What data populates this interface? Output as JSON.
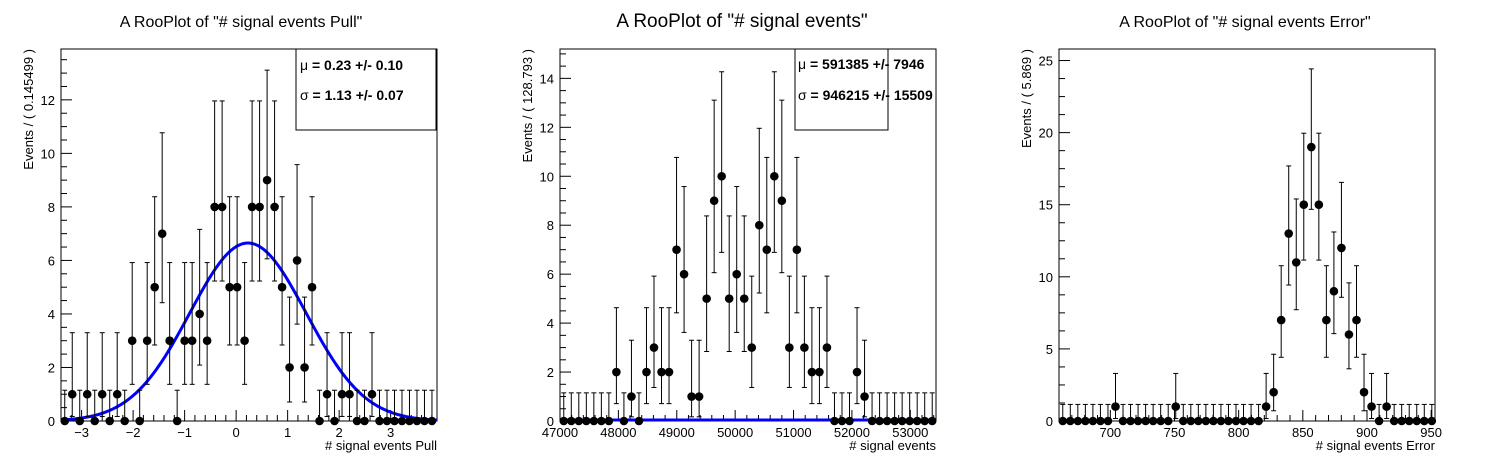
{
  "chart_data": [
    {
      "type": "scatter",
      "title": "A RooPlot of \"# signal events Pull\"",
      "xlabel": "# signal events Pull",
      "ylabel": "Events / ( 0.145499 )",
      "xlim": [
        -3.4,
        3.9
      ],
      "ylim": [
        0,
        13.9
      ],
      "xticks": [
        -3,
        -2,
        -1,
        0,
        1,
        2,
        3
      ],
      "xtick_labels": [
        "−3",
        "−2",
        "−1",
        "0",
        "1",
        "2",
        "3"
      ],
      "yticks": [
        0,
        2,
        4,
        6,
        8,
        10,
        12
      ],
      "bin_width": 0.145499,
      "counts": [
        0,
        1,
        0,
        1,
        0,
        1,
        0,
        1,
        0,
        3,
        0,
        3,
        5,
        7,
        3,
        0,
        3,
        3,
        4,
        3,
        8,
        8,
        5,
        5,
        3,
        8,
        8,
        9,
        8,
        5,
        2,
        6,
        2,
        5,
        0,
        1,
        0,
        1,
        1,
        0,
        0,
        1,
        0,
        0,
        0,
        0,
        0,
        0,
        0,
        0
      ],
      "errors_up": [
        1.15,
        2.3,
        1.15,
        2.3,
        1.15,
        2.3,
        1.15,
        2.3,
        1.15,
        2.92,
        1.15,
        2.92,
        3.38,
        3.77,
        2.92,
        1.15,
        2.92,
        2.92,
        3.16,
        2.92,
        3.96,
        3.96,
        3.38,
        3.38,
        2.92,
        3.96,
        3.96,
        4.11,
        3.96,
        3.38,
        2.63,
        3.58,
        2.63,
        3.38,
        1.15,
        2.3,
        1.15,
        2.3,
        2.3,
        1.15,
        1.15,
        2.3,
        1.15,
        1.15,
        1.15,
        1.15,
        1.15,
        1.15,
        1.15,
        1.15
      ],
      "errors_down": [
        0,
        0.83,
        0,
        0.83,
        0,
        0.83,
        0,
        0.83,
        0,
        1.63,
        0,
        1.63,
        2.16,
        2.58,
        1.63,
        0,
        1.63,
        1.63,
        1.91,
        1.63,
        2.77,
        2.77,
        2.16,
        2.16,
        1.63,
        2.77,
        2.77,
        2.94,
        2.77,
        2.16,
        1.29,
        2.38,
        1.29,
        2.16,
        0,
        0.83,
        0,
        0.83,
        0.83,
        0,
        0,
        0.83,
        0,
        0,
        0,
        0,
        0,
        0,
        0,
        0
      ],
      "fit_curve": {
        "type": "gaussian",
        "mean": 0.23,
        "sigma": 1.13,
        "peak": 6.65,
        "color": "#0000ff"
      },
      "stats": [
        {
          "symbol": "μ",
          "text": " =  0.23 +/- 0.10"
        },
        {
          "symbol": "σ",
          "text": " =  1.13 +/- 0.07"
        }
      ],
      "stats_box": {
        "bold": true
      }
    },
    {
      "type": "scatter",
      "title": "A RooPlot of \"# signal events\"",
      "xlabel": "# signal events",
      "ylabel": "Events / ( 128.793 )",
      "xlim": [
        47000,
        53440
      ],
      "ylim": [
        0,
        15.2
      ],
      "xticks": [
        47000,
        48000,
        49000,
        50000,
        51000,
        52000,
        53000
      ],
      "xtick_labels": [
        "47000",
        "48000",
        "49000",
        "50000",
        "51000",
        "52000",
        "53000"
      ],
      "yticks": [
        0,
        2,
        4,
        6,
        8,
        10,
        12,
        14
      ],
      "bin_width": 128.793,
      "counts": [
        0,
        0,
        0,
        0,
        0,
        0,
        0,
        2,
        0,
        1,
        0,
        2,
        3,
        2,
        2,
        7,
        6,
        1,
        1,
        5,
        9,
        10,
        5,
        6,
        5,
        3,
        8,
        7,
        10,
        9,
        3,
        7,
        3,
        2,
        2,
        3,
        0,
        0,
        0,
        2,
        1,
        0,
        0,
        0,
        0,
        0,
        0,
        0,
        0,
        0
      ],
      "errors_up": [
        1.15,
        1.15,
        1.15,
        1.15,
        1.15,
        1.15,
        1.15,
        2.63,
        1.15,
        2.3,
        1.15,
        2.63,
        2.92,
        2.63,
        2.63,
        3.77,
        3.58,
        2.3,
        2.3,
        3.38,
        4.11,
        4.27,
        3.38,
        3.58,
        3.38,
        2.92,
        3.96,
        3.77,
        4.27,
        4.11,
        2.92,
        3.77,
        2.92,
        2.63,
        2.63,
        2.92,
        1.15,
        1.15,
        1.15,
        2.63,
        2.3,
        1.15,
        1.15,
        1.15,
        1.15,
        1.15,
        1.15,
        1.15,
        1.15,
        1.15
      ],
      "errors_down": [
        0,
        0,
        0,
        0,
        0,
        0,
        0,
        1.29,
        0,
        0.83,
        0,
        1.29,
        1.63,
        1.29,
        1.29,
        2.58,
        2.38,
        0.83,
        0.83,
        2.16,
        2.94,
        3.11,
        2.16,
        2.38,
        2.16,
        1.63,
        2.77,
        2.58,
        3.11,
        2.94,
        1.63,
        2.58,
        1.63,
        1.29,
        1.29,
        1.63,
        0,
        0,
        0,
        1.29,
        0.83,
        0,
        0,
        0,
        0,
        0,
        0,
        0,
        0,
        0
      ],
      "fit_curve": {
        "type": "flat",
        "value": 0,
        "color": "#0000ff"
      },
      "stats": [
        {
          "symbol": "μ",
          "text": " =  591385 +/- 7946"
        },
        {
          "symbol": "σ",
          "text": " =  946215 +/- 15509"
        }
      ],
      "stats_box": {
        "bold": true
      }
    },
    {
      "type": "scatter",
      "title": "A RooPlot of \"# signal events Error\"",
      "xlabel": "# signal events Error",
      "ylabel": "Events / ( 5.869 )",
      "xlim": [
        660,
        953
      ],
      "ylim": [
        0,
        25.8
      ],
      "xticks": [
        700,
        750,
        800,
        850,
        900,
        950
      ],
      "xtick_labels": [
        "700",
        "750",
        "800",
        "850",
        "900",
        "950"
      ],
      "yticks": [
        0,
        5,
        10,
        15,
        20,
        25
      ],
      "bin_width": 5.869,
      "counts": [
        0,
        0,
        0,
        0,
        0,
        0,
        0,
        1,
        0,
        0,
        0,
        0,
        0,
        0,
        0,
        1,
        0,
        0,
        0,
        0,
        0,
        0,
        0,
        0,
        0,
        0,
        0,
        1,
        2,
        7,
        13,
        11,
        15,
        19,
        15,
        7,
        9,
        12,
        6,
        7,
        2,
        1,
        0,
        1,
        0,
        0,
        0,
        0,
        0,
        0
      ],
      "errors_up": [
        1.15,
        1.15,
        1.15,
        1.15,
        1.15,
        1.15,
        1.15,
        2.3,
        1.15,
        1.15,
        1.15,
        1.15,
        1.15,
        1.15,
        1.15,
        2.3,
        1.15,
        1.15,
        1.15,
        1.15,
        1.15,
        1.15,
        1.15,
        1.15,
        1.15,
        1.15,
        1.15,
        2.3,
        2.63,
        3.77,
        4.69,
        4.4,
        4.96,
        5.42,
        4.96,
        3.77,
        4.11,
        4.55,
        3.58,
        3.77,
        2.63,
        2.3,
        1.15,
        2.3,
        1.15,
        1.15,
        1.15,
        1.15,
        1.15,
        1.15
      ],
      "errors_down": [
        0,
        0,
        0,
        0,
        0,
        0,
        0,
        0.83,
        0,
        0,
        0,
        0,
        0,
        0,
        0,
        0.83,
        0,
        0,
        0,
        0,
        0,
        0,
        0,
        0,
        0,
        0,
        0,
        0.83,
        1.29,
        2.58,
        3.57,
        3.28,
        3.84,
        4.32,
        3.84,
        2.58,
        2.94,
        3.42,
        2.38,
        2.58,
        1.29,
        0.83,
        0,
        0.83,
        0,
        0,
        0,
        0,
        0,
        0
      ],
      "stats": []
    }
  ]
}
